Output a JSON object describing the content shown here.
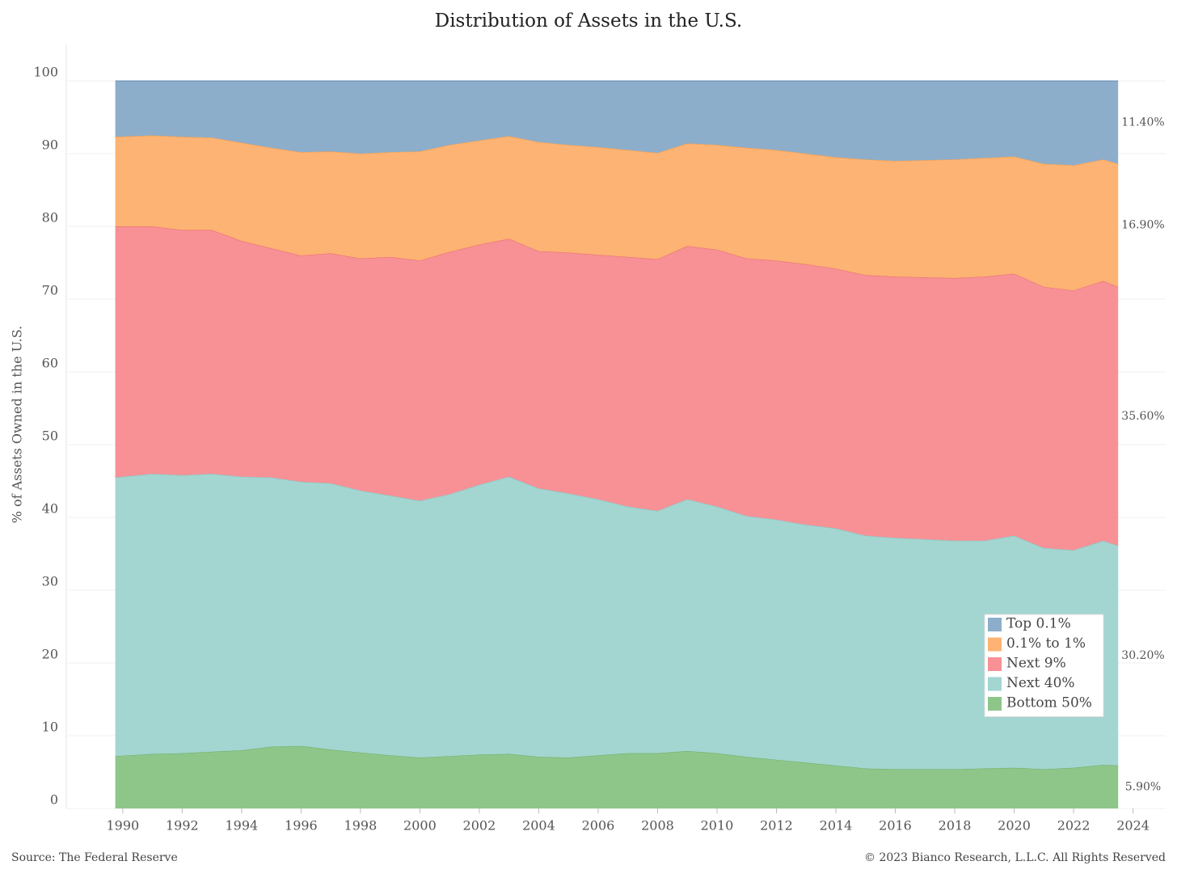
{
  "chart_data": {
    "type": "stacked_area",
    "title": "Distribution of Assets in the U.S.",
    "y_label": "% of Assets Owned in the U.S.",
    "source": "Source: The Federal Reserve",
    "copyright": "© 2023 Bianco Research, L.L.C. All Rights Reserved",
    "x": [
      1989.75,
      1991,
      1992,
      1993,
      1994,
      1995,
      1996,
      1997,
      1998,
      1999,
      2000,
      2001,
      2002,
      2003,
      2004,
      2005,
      2006,
      2007,
      2008,
      2009,
      2010,
      2011,
      2012,
      2013,
      2014,
      2015,
      2016,
      2017,
      2018,
      2019,
      2020,
      2021,
      2022,
      2023,
      2023.5
    ],
    "xlim": [
      1988.1,
      2025.1
    ],
    "xticks": [
      1990,
      1992,
      1994,
      1996,
      1998,
      2000,
      2002,
      2004,
      2006,
      2008,
      2010,
      2012,
      2014,
      2016,
      2018,
      2020,
      2022,
      2024
    ],
    "ylim": [
      0,
      100
    ],
    "yticks": [
      0,
      10,
      20,
      30,
      40,
      50,
      60,
      70,
      80,
      90,
      100
    ],
    "grid": true,
    "legend": "lower right",
    "series": [
      {
        "name": "Bottom 50%",
        "color": "#8ec68a",
        "label_color": "#59a14f",
        "end_label": "5.90%",
        "values": [
          7.2,
          7.5,
          7.6,
          7.8,
          8.0,
          8.5,
          8.6,
          8.1,
          7.7,
          7.3,
          7.0,
          7.2,
          7.4,
          7.5,
          7.1,
          7.0,
          7.3,
          7.6,
          7.6,
          7.9,
          7.6,
          7.1,
          6.7,
          6.3,
          5.9,
          5.5,
          5.4,
          5.4,
          5.4,
          5.5,
          5.6,
          5.4,
          5.6,
          6.0,
          5.9
        ]
      },
      {
        "name": "Next 40%",
        "color": "#a3d5d1",
        "label_color": "#76b7b2",
        "end_label": "30.20%",
        "values": [
          38.3,
          38.5,
          38.2,
          38.2,
          37.6,
          37.0,
          36.3,
          36.6,
          36.0,
          35.7,
          35.3,
          36.0,
          37.1,
          38.1,
          36.9,
          36.3,
          35.2,
          33.9,
          33.3,
          34.6,
          33.9,
          33.1,
          33.0,
          32.7,
          32.6,
          32.0,
          31.8,
          31.6,
          31.4,
          31.3,
          31.9,
          30.4,
          29.9,
          30.8,
          30.2
        ]
      },
      {
        "name": "Next 9%",
        "color": "#f79196",
        "label_color": "#e15759",
        "end_label": "35.60%",
        "values": [
          34.5,
          34.0,
          33.7,
          33.5,
          32.4,
          31.5,
          31.1,
          31.6,
          31.9,
          32.8,
          33.0,
          33.3,
          33.0,
          32.7,
          32.6,
          33.1,
          33.6,
          34.3,
          34.6,
          34.8,
          35.3,
          35.4,
          35.6,
          35.8,
          35.7,
          35.8,
          35.9,
          36.0,
          36.1,
          36.3,
          36.0,
          35.9,
          35.7,
          35.7,
          35.6
        ]
      },
      {
        "name": "0.1% to 1%",
        "color": "#fdb373",
        "label_color": "#f28e2b",
        "end_label": "16.90%",
        "values": [
          12.3,
          12.5,
          12.8,
          12.7,
          13.5,
          13.8,
          14.2,
          14.0,
          14.4,
          14.4,
          15.0,
          14.7,
          14.3,
          14.1,
          15.0,
          14.8,
          14.8,
          14.7,
          14.6,
          14.1,
          14.4,
          15.2,
          15.2,
          15.2,
          15.3,
          15.9,
          15.9,
          16.1,
          16.3,
          16.3,
          16.1,
          16.9,
          17.2,
          16.7,
          16.9
        ]
      },
      {
        "name": "Top 0.1%",
        "color": "#8daecb",
        "label_color": "#4e79a7",
        "end_label": "11.40%",
        "values": [
          7.7,
          7.5,
          7.7,
          7.8,
          8.5,
          9.2,
          9.8,
          9.7,
          10.0,
          9.8,
          9.7,
          8.8,
          8.2,
          7.6,
          8.4,
          8.8,
          9.1,
          9.5,
          9.9,
          8.6,
          8.8,
          9.2,
          9.5,
          10.0,
          10.5,
          10.8,
          11.0,
          10.9,
          10.8,
          10.6,
          10.4,
          11.4,
          11.6,
          10.8,
          11.4
        ]
      }
    ]
  }
}
